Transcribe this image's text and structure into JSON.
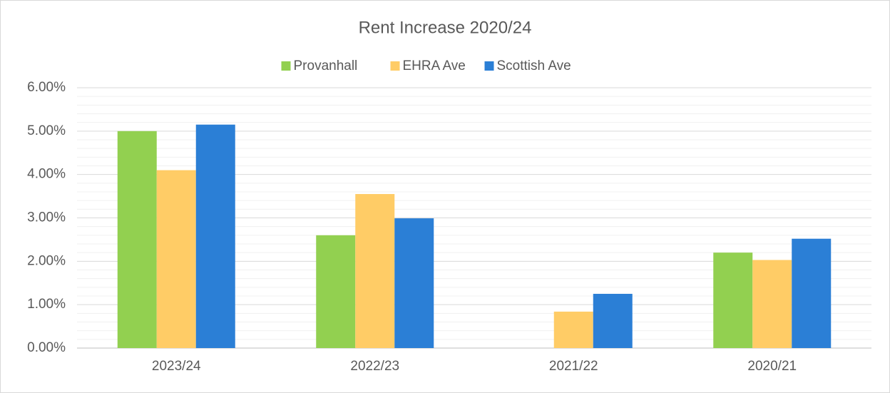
{
  "chart_data": {
    "type": "bar",
    "title": "Rent Increase 2020/24",
    "categories": [
      "2023/24",
      "2022/23",
      "2021/22",
      "2020/21"
    ],
    "series": [
      {
        "name": "Provanhall",
        "color": "#92d050",
        "values": [
          5.0,
          2.6,
          0,
          2.2
        ]
      },
      {
        "name": "EHRA Ave",
        "color": "#ffcc66",
        "values": [
          4.1,
          3.55,
          0.84,
          2.03
        ]
      },
      {
        "name": "Scottish Ave",
        "color": "#2b7fd6",
        "values": [
          5.15,
          2.99,
          1.25,
          2.52
        ]
      }
    ],
    "ylim": [
      0,
      6
    ],
    "yticks": [
      {
        "value": 0,
        "label": "0.00%"
      },
      {
        "value": 1,
        "label": "1.00%"
      },
      {
        "value": 2,
        "label": "2.00%"
      },
      {
        "value": 3,
        "label": "3.00%"
      },
      {
        "value": 4,
        "label": "4.00%"
      },
      {
        "value": 5,
        "label": "5.00%"
      },
      {
        "value": 6,
        "label": "6.00%"
      }
    ],
    "grid": true,
    "minor_grid": true,
    "legend": "top"
  }
}
